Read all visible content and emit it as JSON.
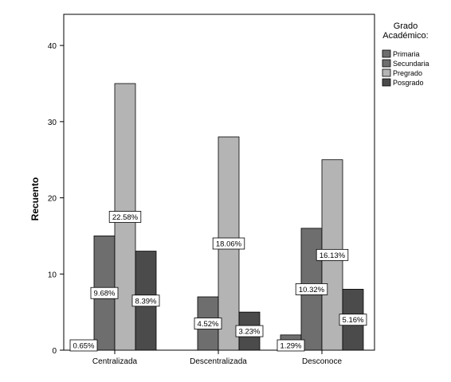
{
  "chart_data": {
    "type": "bar",
    "title": "",
    "xlabel": "",
    "ylabel": "Recuento",
    "ylim": [
      0,
      42
    ],
    "yticks": [
      0,
      10,
      20,
      30,
      40
    ],
    "grid": false,
    "categories": [
      "Centralizada",
      "Descentralizada",
      "Desconoce"
    ],
    "legend": {
      "title_lines": [
        "Grado",
        "Académico:"
      ],
      "position": "right"
    },
    "series": [
      {
        "name": "Primaria",
        "color": "#6e6e6e",
        "values": [
          1,
          0,
          2
        ],
        "labels": [
          "0.65%",
          "",
          "1.29%"
        ]
      },
      {
        "name": "Secundaria",
        "color": "#6e6e6e",
        "values": [
          15,
          7,
          16
        ],
        "labels": [
          "9.68%",
          "4.52%",
          "10.32%"
        ]
      },
      {
        "name": "Pregrado",
        "color": "#b4b4b4",
        "values": [
          35,
          28,
          25
        ],
        "labels": [
          "22.58%",
          "18.06%",
          "16.13%"
        ]
      },
      {
        "name": "Posgrado",
        "color": "#4b4b4b",
        "values": [
          13,
          5,
          8
        ],
        "labels": [
          "8.39%",
          "3.23%",
          "5.16%"
        ]
      }
    ]
  }
}
